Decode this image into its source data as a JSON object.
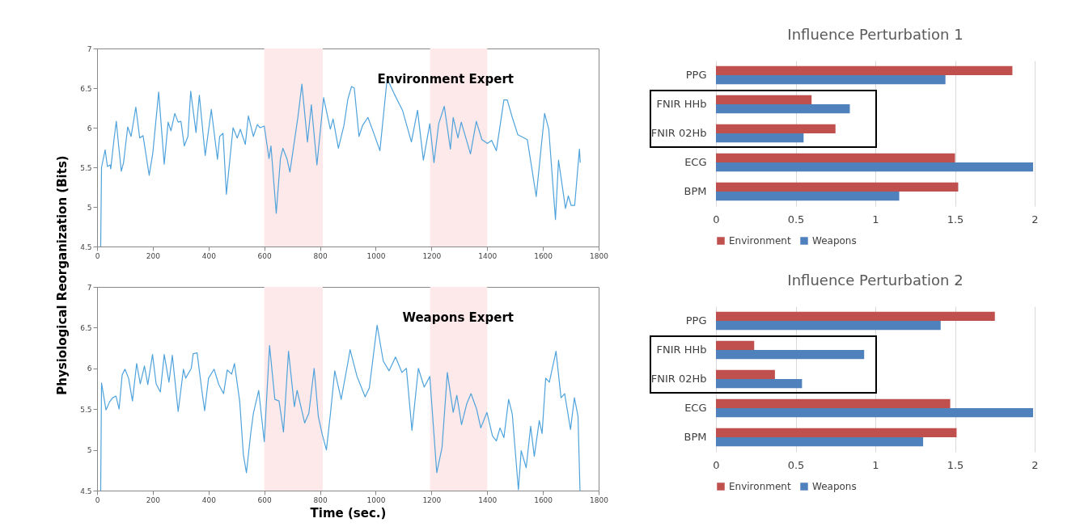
{
  "chart_data": [
    {
      "type": "line",
      "ylabel": "Physiological Reorganization (Bits)",
      "annotations": [
        "Environment Expert"
      ],
      "xlim": [
        0,
        1800
      ],
      "xticks": [
        0,
        200,
        400,
        600,
        800,
        1000,
        1200,
        1400,
        1600,
        1800
      ],
      "ylim": [
        4.5,
        7
      ],
      "yticks": [
        4.5,
        5,
        5.5,
        6,
        6.5,
        7
      ],
      "grid": false,
      "bands": [
        {
          "axis": "x",
          "from": 600,
          "to": 810,
          "color": "#fde9e9"
        },
        {
          "axis": "x",
          "from": 1195,
          "to": 1400,
          "color": "#fde9e9"
        }
      ],
      "series": [
        {
          "color": "#4fa3dc",
          "x": [
            13,
            16,
            29,
            37,
            47,
            49,
            61,
            69,
            78,
            87,
            95,
            110,
            122,
            139,
            153,
            165,
            187,
            200,
            221,
            241,
            255,
            265,
            279,
            291,
            301,
            313,
            326,
            336,
            355,
            367,
            388,
            410,
            432,
            440,
            452,
            464,
            488,
            503,
            514,
            532,
            543,
            561,
            575,
            585,
            600,
            617,
            624,
            643,
            658,
            667,
            682,
            692,
            721,
            735,
            755,
            769,
            789,
            813,
            837,
            847,
            866,
            886,
            900,
            913,
            923,
            940,
            953,
            972,
            992,
            1015,
            1041,
            1066,
            1096,
            1128,
            1150,
            1171,
            1194,
            1209,
            1226,
            1246,
            1268,
            1278,
            1295,
            1307,
            1340,
            1361,
            1381,
            1401,
            1416,
            1433,
            1460,
            1472,
            1490,
            1510,
            1544,
            1576,
            1606,
            1621,
            1645,
            1656,
            1681,
            1691,
            1701,
            1714,
            1731,
            1734
          ],
          "values": [
            4.5,
            5.5,
            5.72,
            5.51,
            5.53,
            5.48,
            5.86,
            6.08,
            5.75,
            5.45,
            5.56,
            6.01,
            5.89,
            6.26,
            5.87,
            5.9,
            5.4,
            5.68,
            6.45,
            5.54,
            6.07,
            5.96,
            6.18,
            6.07,
            6.08,
            5.77,
            5.89,
            6.46,
            5.94,
            6.41,
            5.65,
            6.23,
            5.6,
            5.89,
            5.93,
            5.16,
            6.0,
            5.87,
            5.98,
            5.79,
            6.15,
            5.89,
            6.04,
            6.0,
            6.02,
            5.61,
            5.77,
            4.92,
            5.61,
            5.74,
            5.6,
            5.44,
            6.14,
            6.55,
            5.82,
            6.29,
            5.53,
            6.38,
            5.98,
            6.11,
            5.74,
            6.03,
            6.36,
            6.52,
            6.5,
            5.89,
            6.03,
            6.13,
            5.94,
            5.71,
            6.62,
            6.43,
            6.22,
            5.82,
            6.22,
            5.59,
            6.05,
            5.56,
            6.05,
            6.27,
            5.73,
            6.13,
            5.87,
            6.07,
            5.67,
            6.08,
            5.85,
            5.8,
            5.84,
            5.71,
            6.35,
            6.35,
            6.13,
            5.91,
            5.85,
            5.13,
            6.18,
            5.98,
            4.84,
            5.59,
            4.98,
            5.14,
            5.02,
            5.02,
            5.73,
            5.56
          ]
        }
      ]
    },
    {
      "type": "line",
      "xlabel": "Time (sec.)",
      "annotations": [
        "Weapons Expert"
      ],
      "xlim": [
        0,
        1800
      ],
      "xticks": [
        0,
        200,
        400,
        600,
        800,
        1000,
        1200,
        1400,
        1600,
        1800
      ],
      "ylim": [
        4.5,
        7
      ],
      "yticks": [
        4.5,
        5,
        5.5,
        6,
        6.5,
        7
      ],
      "grid": false,
      "bands": [
        {
          "axis": "x",
          "from": 600,
          "to": 810,
          "color": "#fde9e9"
        },
        {
          "axis": "x",
          "from": 1195,
          "to": 1400,
          "color": "#fde9e9"
        }
      ],
      "series": [
        {
          "color": "#4fa3dc",
          "x": [
            13,
            16,
            32,
            45,
            56,
            68,
            79,
            90,
            100,
            113,
            127,
            142,
            155,
            170,
            182,
            199,
            212,
            227,
            241,
            258,
            270,
            291,
            310,
            318,
            338,
            345,
            359,
            376,
            386,
            400,
            420,
            437,
            454,
            467,
            483,
            493,
            512,
            525,
            536,
            551,
            561,
            580,
            600,
            619,
            638,
            653,
            669,
            687,
            708,
            718,
            745,
            760,
            779,
            794,
            808,
            823,
            837,
            853,
            876,
            900,
            908,
            933,
            962,
            977,
            1005,
            1027,
            1048,
            1071,
            1094,
            1110,
            1130,
            1153,
            1174,
            1194,
            1219,
            1238,
            1257,
            1278,
            1291,
            1308,
            1327,
            1342,
            1362,
            1377,
            1399,
            1419,
            1433,
            1446,
            1460,
            1477,
            1490,
            1512,
            1522,
            1540,
            1556,
            1569,
            1587,
            1597,
            1610,
            1623,
            1647,
            1665,
            1678,
            1699,
            1713,
            1726,
            1733
          ],
          "values": [
            4.5,
            5.82,
            5.49,
            5.59,
            5.64,
            5.66,
            5.5,
            5.92,
            5.99,
            5.88,
            5.6,
            6.06,
            5.81,
            6.03,
            5.8,
            6.17,
            5.81,
            5.71,
            6.17,
            5.83,
            6.16,
            5.47,
            5.99,
            5.88,
            6.0,
            6.18,
            6.19,
            5.73,
            5.48,
            5.88,
            5.99,
            5.8,
            5.69,
            5.98,
            5.93,
            6.06,
            5.59,
            4.94,
            4.72,
            5.19,
            5.45,
            5.73,
            5.1,
            6.28,
            5.62,
            5.6,
            5.22,
            6.21,
            5.53,
            5.73,
            5.33,
            5.45,
            6.0,
            5.41,
            5.19,
            5.0,
            5.43,
            5.97,
            5.62,
            6.07,
            6.23,
            5.9,
            5.65,
            5.76,
            6.53,
            6.09,
            5.97,
            6.14,
            5.95,
            6.0,
            5.24,
            6.0,
            5.77,
            5.9,
            4.72,
            5.03,
            5.95,
            5.46,
            5.67,
            5.31,
            5.57,
            5.69,
            5.5,
            5.27,
            5.46,
            5.17,
            5.11,
            5.27,
            5.15,
            5.62,
            5.44,
            4.51,
            4.99,
            4.78,
            5.29,
            4.92,
            5.36,
            5.2,
            5.88,
            5.83,
            6.21,
            5.64,
            5.69,
            5.25,
            5.64,
            5.41,
            4.5
          ]
        }
      ]
    },
    {
      "type": "bar",
      "orientation": "horizontal",
      "title": "Influence Perturbation 1",
      "categories": [
        "PPG",
        "FNIR HHb",
        "FNIR 02Hb",
        "ECG",
        "BPM"
      ],
      "xlim": [
        0,
        2
      ],
      "xticks": [
        0,
        0.5,
        1,
        1.5,
        2
      ],
      "grid": "x",
      "legend": "bottom",
      "series": [
        {
          "name": "Environment",
          "color": "#c0504d",
          "values": [
            1.86,
            0.6,
            0.75,
            1.5,
            1.52
          ]
        },
        {
          "name": "Weapons",
          "color": "#4f81bd",
          "values": [
            1.44,
            0.84,
            0.55,
            1.99,
            1.15
          ]
        }
      ]
    },
    {
      "type": "bar",
      "orientation": "horizontal",
      "title": "Influence Perturbation 2",
      "categories": [
        "PPG",
        "FNIR HHb",
        "FNIR 02Hb",
        "ECG",
        "BPM"
      ],
      "xlim": [
        0,
        2
      ],
      "xticks": [
        0,
        0.5,
        1,
        1.5,
        2
      ],
      "grid": "x",
      "legend": "bottom",
      "series": [
        {
          "name": "Environment",
          "color": "#c0504d",
          "values": [
            1.75,
            0.24,
            0.37,
            1.47,
            1.51
          ]
        },
        {
          "name": "Weapons",
          "color": "#4f81bd",
          "values": [
            1.41,
            0.93,
            0.54,
            1.99,
            1.3
          ]
        }
      ]
    }
  ]
}
